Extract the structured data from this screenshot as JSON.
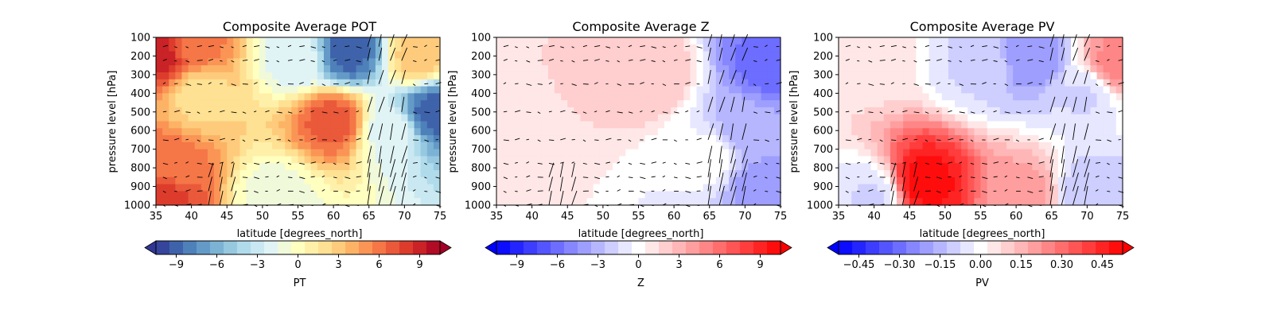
{
  "chart_data": [
    {
      "type": "heatmap",
      "title": "Composite Average POT",
      "xlabel": "latitude [degrees_north]",
      "ylabel": "pressure level [hPa]",
      "xlim": [
        35,
        75
      ],
      "ylim": [
        1000,
        100
      ],
      "xticks": [
        "35",
        "40",
        "45",
        "50",
        "55",
        "60",
        "65",
        "70",
        "75"
      ],
      "yticks": [
        "100",
        "200",
        "300",
        "400",
        "500",
        "600",
        "700",
        "800",
        "900",
        "1000"
      ],
      "colorbar": {
        "label": "PT",
        "range": [
          -10.5,
          10.5
        ],
        "ticks": [
          "−9",
          "−6",
          "−3",
          "0",
          "3",
          "6",
          "9"
        ],
        "tick_values": [
          -9,
          -6,
          -3,
          0,
          3,
          6,
          9
        ],
        "colormap": "RdYlBu_r",
        "colors": [
          "#313695",
          "#4575b4",
          "#74add1",
          "#abd9e9",
          "#e0f3f8",
          "#ffffbf",
          "#fee090",
          "#fdae61",
          "#f46d43",
          "#d73027",
          "#a50026"
        ]
      },
      "features": [
        {
          "lat": 36,
          "p": 200,
          "value": 9
        },
        {
          "lat": 40,
          "p": 150,
          "value": 6
        },
        {
          "lat": 55,
          "p": 200,
          "value": -2
        },
        {
          "lat": 62,
          "p": 180,
          "value": -9
        },
        {
          "lat": 72,
          "p": 200,
          "value": 3
        },
        {
          "lat": 60,
          "p": 550,
          "value": 7
        },
        {
          "lat": 41,
          "p": 400,
          "value": 2
        },
        {
          "lat": 37,
          "p": 800,
          "value": 6
        },
        {
          "lat": 36,
          "p": 950,
          "value": 8
        },
        {
          "lat": 52,
          "p": 950,
          "value": -1
        },
        {
          "lat": 68,
          "p": 600,
          "value": -2
        },
        {
          "lat": 74,
          "p": 500,
          "value": -9
        }
      ],
      "background_value": 2
    },
    {
      "type": "heatmap",
      "title": "Composite Average Z",
      "xlabel": "latitude [degrees_north]",
      "ylabel": "pressure level [hPa]",
      "xlim": [
        35,
        75
      ],
      "ylim": [
        1000,
        100
      ],
      "xticks": [
        "35",
        "40",
        "45",
        "50",
        "55",
        "60",
        "65",
        "70",
        "75"
      ],
      "yticks": [
        "100",
        "200",
        "300",
        "400",
        "500",
        "600",
        "700",
        "800",
        "900",
        "1000"
      ],
      "colorbar": {
        "label": "Z",
        "range": [
          -10.5,
          10.5
        ],
        "ticks": [
          "−9",
          "−6",
          "−3",
          "0",
          "3",
          "6",
          "9"
        ],
        "tick_values": [
          -9,
          -6,
          -3,
          0,
          3,
          6,
          9
        ],
        "colormap": "bwr",
        "colors": [
          "#0000ff",
          "#ffffff",
          "#ff0000"
        ]
      },
      "features": [
        {
          "lat": 56,
          "p": 300,
          "value": 2.5
        },
        {
          "lat": 40,
          "p": 500,
          "value": 1.5
        },
        {
          "lat": 36,
          "p": 950,
          "value": 0.5
        },
        {
          "lat": 65,
          "p": 750,
          "value": 0
        },
        {
          "lat": 70,
          "p": 600,
          "value": -3
        },
        {
          "lat": 74,
          "p": 250,
          "value": -6
        },
        {
          "lat": 72,
          "p": 900,
          "value": -4
        }
      ],
      "background_value": 1.5
    },
    {
      "type": "heatmap",
      "title": "Composite Average PV",
      "xlabel": "latitude [degrees_north]",
      "ylabel": "pressure level [hPa]",
      "xlim": [
        35,
        75
      ],
      "ylim": [
        1000,
        100
      ],
      "xticks": [
        "35",
        "40",
        "45",
        "50",
        "55",
        "60",
        "65",
        "70",
        "75"
      ],
      "yticks": [
        "100",
        "200",
        "300",
        "400",
        "500",
        "600",
        "700",
        "800",
        "900",
        "1000"
      ],
      "colorbar": {
        "label": "PV",
        "range": [
          -0.525,
          0.525
        ],
        "ticks": [
          "−0.45",
          "−0.30",
          "−0.15",
          "0.00",
          "0.15",
          "0.30",
          "0.45"
        ],
        "tick_values": [
          -0.45,
          -0.3,
          -0.15,
          0,
          0.15,
          0.3,
          0.45
        ],
        "colormap": "bwr",
        "colors": [
          "#0000ff",
          "#ffffff",
          "#ff0000"
        ]
      },
      "features": [
        {
          "lat": 62,
          "p": 200,
          "value": -0.22
        },
        {
          "lat": 55,
          "p": 230,
          "value": -0.08
        },
        {
          "lat": 74,
          "p": 250,
          "value": 0.25
        },
        {
          "lat": 40,
          "p": 180,
          "value": 0.05
        },
        {
          "lat": 46.8,
          "p": 880,
          "value": 0.5
        },
        {
          "lat": 61.5,
          "p": 950,
          "value": 0.2
        },
        {
          "lat": 40,
          "p": 950,
          "value": -0.08
        },
        {
          "lat": 70,
          "p": 950,
          "value": -0.12
        },
        {
          "lat": 70,
          "p": 400,
          "value": -0.08
        }
      ],
      "background_value": -0.03
    }
  ]
}
